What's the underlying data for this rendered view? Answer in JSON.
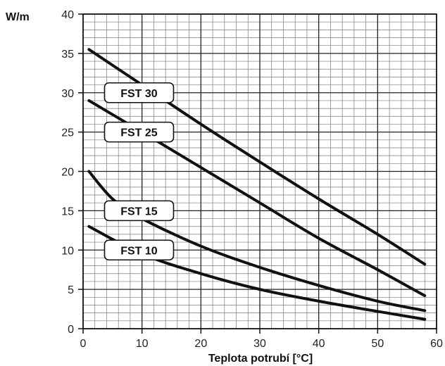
{
  "chart_data": {
    "type": "line",
    "title": "",
    "xlabel": "Teplota potrubí [°C]",
    "ylabel": "W/m",
    "xlim": [
      0,
      60
    ],
    "ylim": [
      0,
      40
    ],
    "xticks": [
      0,
      10,
      20,
      30,
      40,
      50,
      60
    ],
    "yticks": [
      0,
      5,
      10,
      15,
      20,
      25,
      30,
      35,
      40
    ],
    "grid": true,
    "legend": "inline labels on curves",
    "series": [
      {
        "name": "FST 30",
        "x": [
          1,
          10,
          20,
          30,
          40,
          50,
          58
        ],
        "y": [
          35.5,
          31,
          26,
          21.2,
          16.5,
          12,
          8.2
        ]
      },
      {
        "name": "FST 25",
        "x": [
          1,
          10,
          20,
          30,
          40,
          50,
          58
        ],
        "y": [
          29,
          25,
          20.5,
          16,
          11.5,
          7.5,
          4.2
        ]
      },
      {
        "name": "FST 15",
        "x": [
          1,
          5,
          10,
          20,
          30,
          40,
          50,
          58
        ],
        "y": [
          20,
          16.5,
          14,
          10.5,
          7.8,
          5.5,
          3.5,
          2.3
        ]
      },
      {
        "name": "FST 10",
        "x": [
          1,
          10,
          20,
          30,
          40,
          50,
          58
        ],
        "y": [
          13,
          9.5,
          7,
          5,
          3.5,
          2.2,
          1.2
        ]
      }
    ]
  }
}
